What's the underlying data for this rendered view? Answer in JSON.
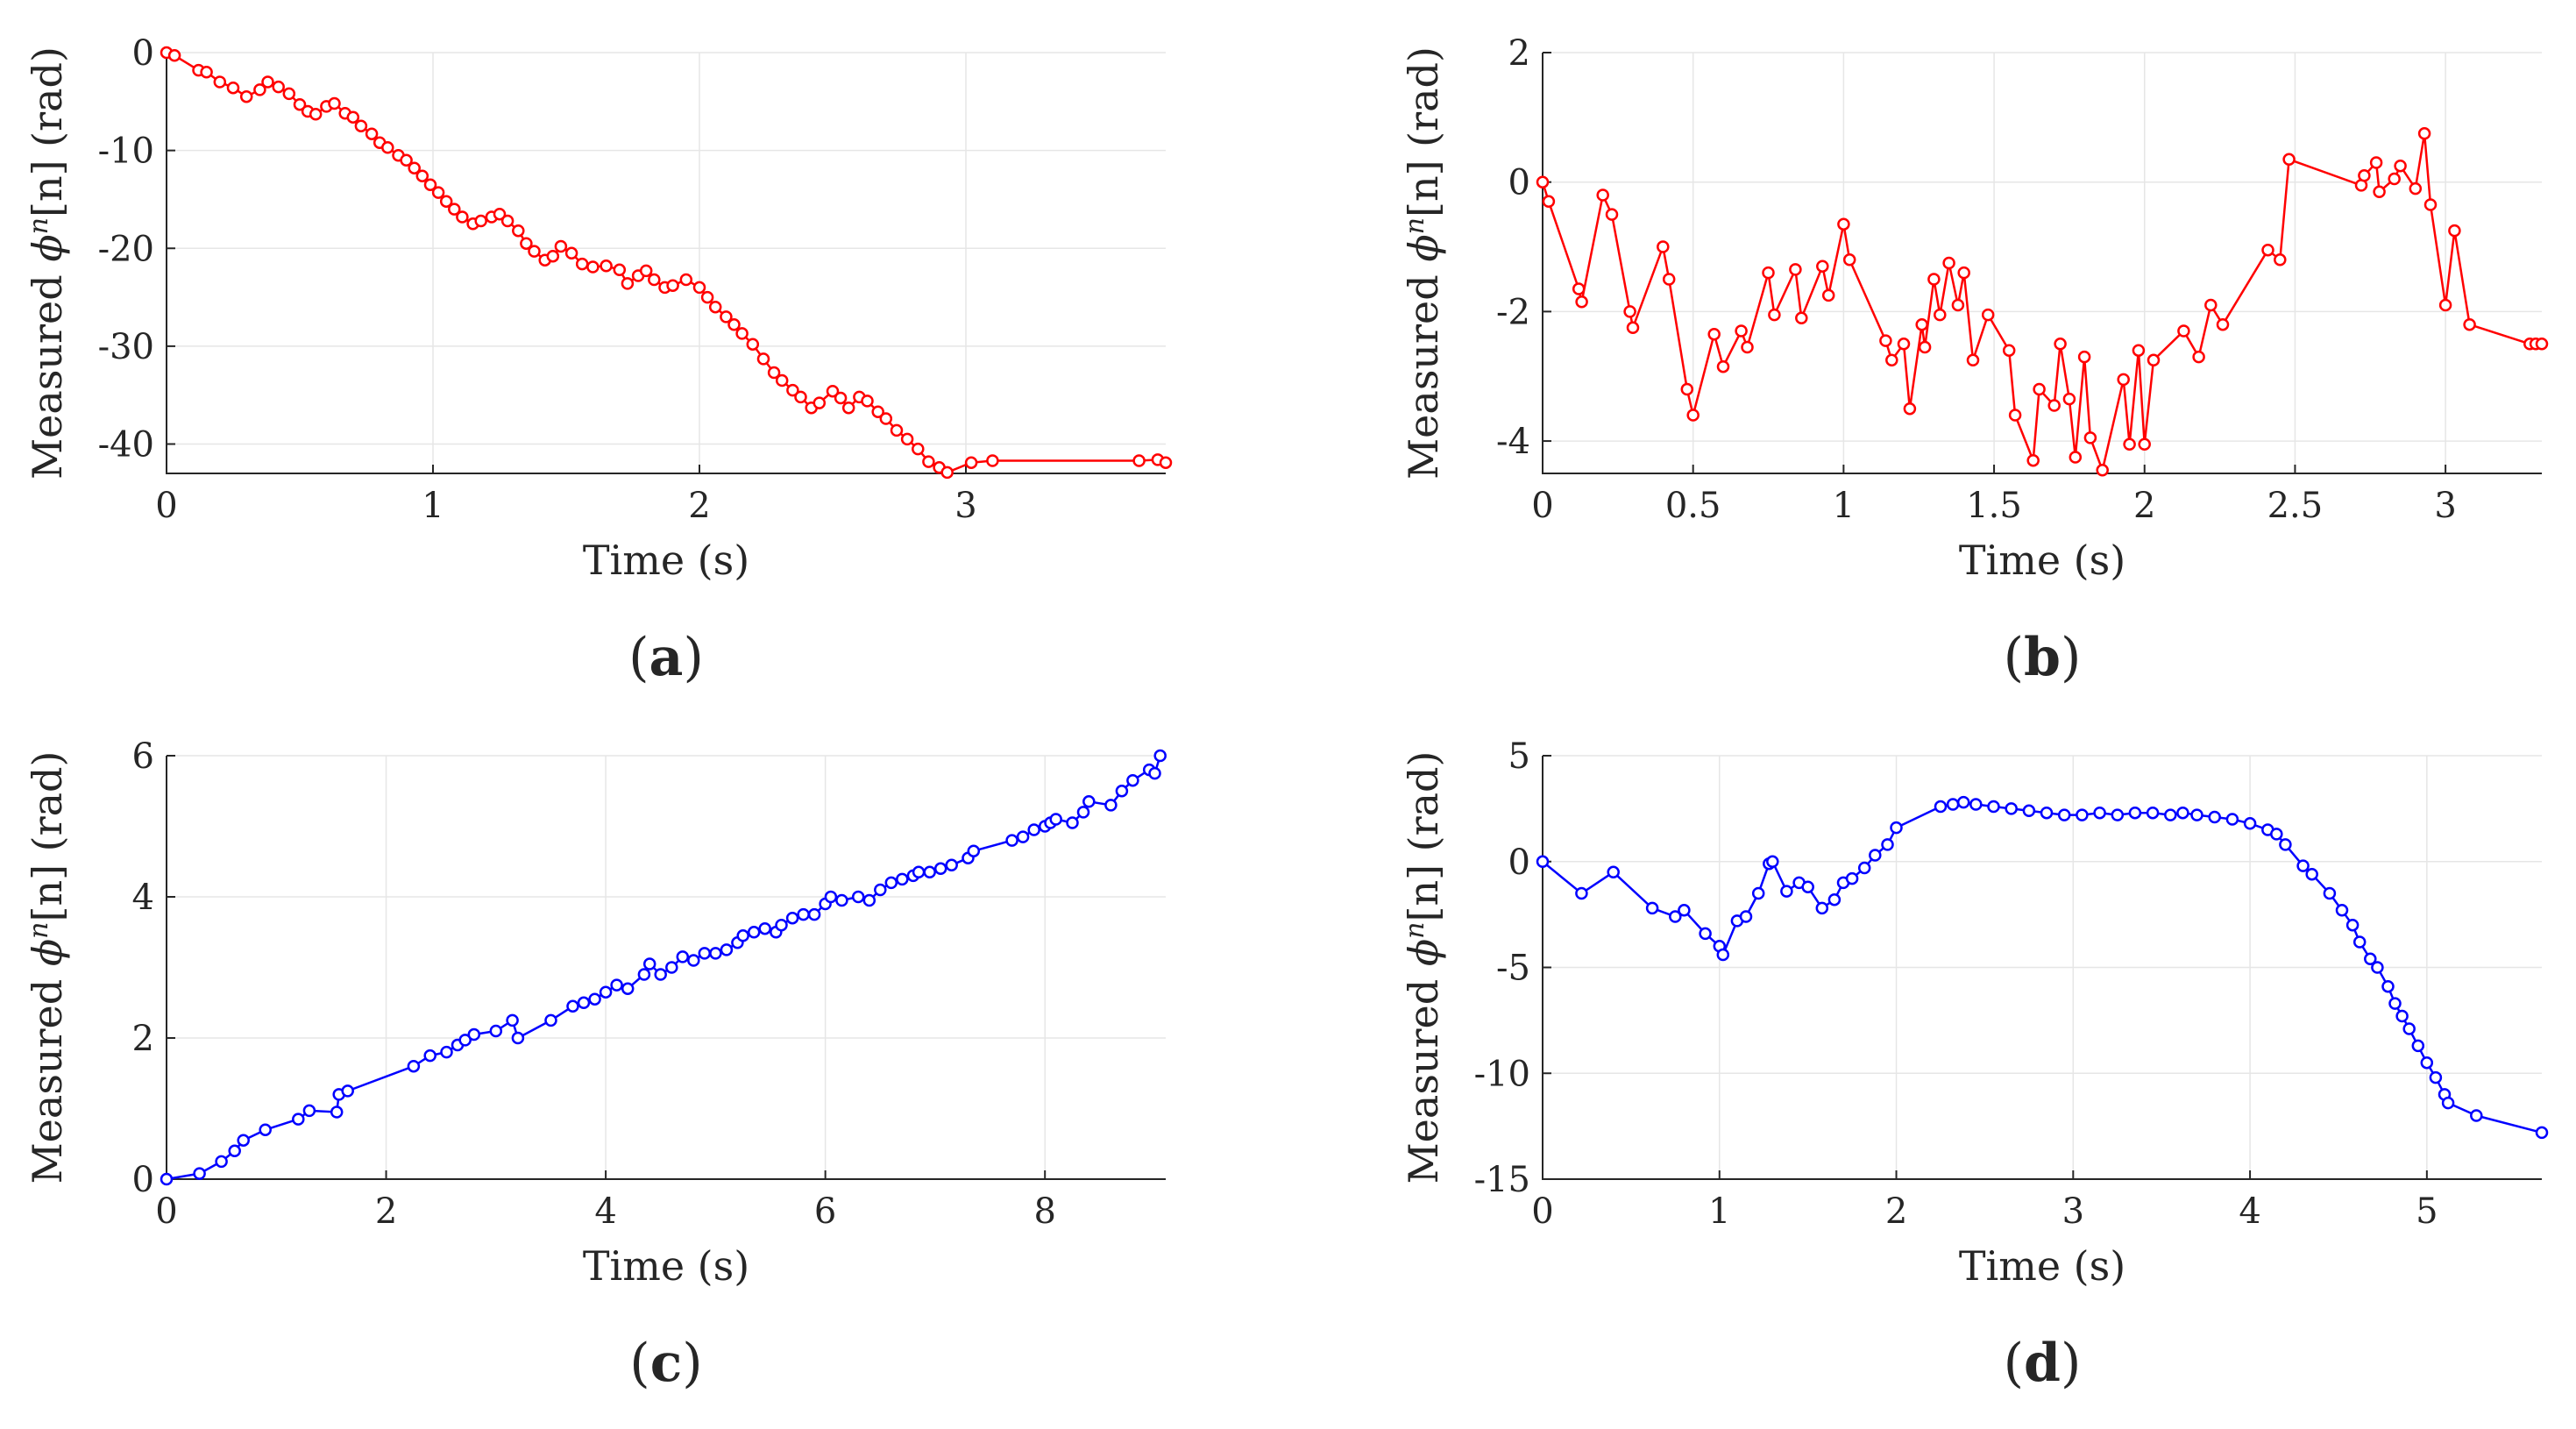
{
  "figure_labels": {
    "open": "(",
    "close": ")"
  },
  "chart_data": [
    {
      "type": "line",
      "panel_label": "a",
      "xlabel": "Time (s)",
      "ylabel_prefix": "Measured ",
      "ylabel_symbol": "ϕ",
      "ylabel_sup": "n",
      "ylabel_bracket": "[n]",
      "ylabel_unit": " (rad)",
      "xlim": [
        0,
        3.75
      ],
      "ylim": [
        -43,
        0
      ],
      "xticks": [
        0,
        1,
        2,
        3
      ],
      "xticklabels": [
        "0",
        "1",
        "2",
        "3"
      ],
      "yticks": [
        0,
        -10,
        -20,
        -30,
        -40
      ],
      "yticklabels": [
        "0",
        "-10",
        "-20",
        "-30",
        "-40"
      ],
      "color": "#ff0000",
      "grid": true,
      "marker": "circle",
      "x": [
        0,
        0.03,
        0.12,
        0.15,
        0.2,
        0.25,
        0.3,
        0.35,
        0.38,
        0.42,
        0.46,
        0.5,
        0.53,
        0.56,
        0.6,
        0.63,
        0.67,
        0.7,
        0.73,
        0.77,
        0.8,
        0.83,
        0.87,
        0.9,
        0.93,
        0.96,
        0.99,
        1.02,
        1.05,
        1.08,
        1.11,
        1.15,
        1.18,
        1.22,
        1.25,
        1.28,
        1.32,
        1.35,
        1.38,
        1.42,
        1.45,
        1.48,
        1.52,
        1.56,
        1.6,
        1.65,
        1.7,
        1.73,
        1.77,
        1.8,
        1.83,
        1.87,
        1.9,
        1.95,
        2.0,
        2.03,
        2.06,
        2.1,
        2.13,
        2.16,
        2.2,
        2.24,
        2.28,
        2.31,
        2.35,
        2.38,
        2.42,
        2.45,
        2.5,
        2.53,
        2.56,
        2.6,
        2.63,
        2.67,
        2.7,
        2.74,
        2.78,
        2.82,
        2.86,
        2.9,
        2.93,
        3.02,
        3.1,
        3.65,
        3.72,
        3.75
      ],
      "y": [
        0,
        -0.3,
        -1.8,
        -2,
        -3,
        -3.6,
        -4.5,
        -3.8,
        -3,
        -3.5,
        -4.2,
        -5.3,
        -6,
        -6.3,
        -5.5,
        -5.2,
        -6.2,
        -6.6,
        -7.5,
        -8.3,
        -9.2,
        -9.7,
        -10.5,
        -11,
        -11.8,
        -12.6,
        -13.5,
        -14.3,
        -15.2,
        -16,
        -16.8,
        -17.5,
        -17.2,
        -16.8,
        -16.5,
        -17.2,
        -18.2,
        -19.5,
        -20.3,
        -21.2,
        -20.8,
        -19.8,
        -20.5,
        -21.6,
        -21.9,
        -21.8,
        -22.2,
        -23.6,
        -22.8,
        -22.3,
        -23.2,
        -24,
        -23.8,
        -23.2,
        -24,
        -25,
        -26,
        -27,
        -27.8,
        -28.7,
        -29.8,
        -31.3,
        -32.7,
        -33.5,
        -34.5,
        -35.2,
        -36.3,
        -35.8,
        -34.6,
        -35.3,
        -36.3,
        -35.2,
        -35.6,
        -36.7,
        -37.4,
        -38.6,
        -39.5,
        -40.5,
        -41.8,
        -42.4,
        -42.9,
        -41.9,
        -41.7,
        -41.7,
        -41.6,
        -41.9
      ]
    },
    {
      "type": "line",
      "panel_label": "b",
      "xlabel": "Time (s)",
      "ylabel_prefix": "Measured ",
      "ylabel_symbol": "ϕ",
      "ylabel_sup": "n",
      "ylabel_bracket": "[n]",
      "ylabel_unit": " (rad)",
      "xlim": [
        0,
        3.32
      ],
      "ylim": [
        -4.5,
        2
      ],
      "xticks": [
        0,
        0.5,
        1,
        1.5,
        2,
        2.5,
        3
      ],
      "xticklabels": [
        "0",
        "0.5",
        "1",
        "1.5",
        "2",
        "2.5",
        "3"
      ],
      "yticks": [
        2,
        0,
        -2,
        -4
      ],
      "yticklabels": [
        "2",
        "0",
        "-2",
        "-4"
      ],
      "color": "#ff0000",
      "grid": true,
      "marker": "circle",
      "x": [
        0,
        0.02,
        0.12,
        0.13,
        0.2,
        0.23,
        0.29,
        0.3,
        0.4,
        0.42,
        0.48,
        0.5,
        0.57,
        0.6,
        0.66,
        0.68,
        0.75,
        0.77,
        0.84,
        0.86,
        0.93,
        0.95,
        1.0,
        1.02,
        1.14,
        1.16,
        1.2,
        1.22,
        1.26,
        1.27,
        1.3,
        1.32,
        1.35,
        1.38,
        1.4,
        1.43,
        1.48,
        1.55,
        1.57,
        1.63,
        1.65,
        1.7,
        1.72,
        1.75,
        1.77,
        1.8,
        1.82,
        1.86,
        1.93,
        1.95,
        1.98,
        2.0,
        2.03,
        2.13,
        2.18,
        2.22,
        2.26,
        2.41,
        2.45,
        2.48,
        2.72,
        2.73,
        2.77,
        2.78,
        2.83,
        2.85,
        2.9,
        2.93,
        2.95,
        3.0,
        3.03,
        3.08,
        3.28,
        3.3,
        3.32
      ],
      "y": [
        0,
        -0.3,
        -1.65,
        -1.85,
        -0.2,
        -0.5,
        -2,
        -2.25,
        -1,
        -1.5,
        -3.2,
        -3.6,
        -2.35,
        -2.85,
        -2.3,
        -2.55,
        -1.4,
        -2.05,
        -1.35,
        -2.1,
        -1.3,
        -1.75,
        -0.65,
        -1.2,
        -2.45,
        -2.75,
        -2.5,
        -3.5,
        -2.2,
        -2.55,
        -1.5,
        -2.05,
        -1.25,
        -1.9,
        -1.4,
        -2.75,
        -2.05,
        -2.6,
        -3.6,
        -4.3,
        -3.2,
        -3.45,
        -2.5,
        -3.35,
        -4.25,
        -2.7,
        -3.95,
        -4.45,
        -3.05,
        -4.05,
        -2.6,
        -4.05,
        -2.75,
        -2.3,
        -2.7,
        -1.9,
        -2.2,
        -1.05,
        -1.2,
        0.35,
        -0.05,
        0.1,
        0.3,
        -0.15,
        0.05,
        0.25,
        -0.1,
        0.75,
        -0.35,
        -1.9,
        -0.75,
        -2.2,
        -2.5,
        -2.5,
        -2.5
      ]
    },
    {
      "type": "line",
      "panel_label": "c",
      "xlabel": "Time (s)",
      "ylabel_prefix": "Measured ",
      "ylabel_symbol": "ϕ",
      "ylabel_sup": "n",
      "ylabel_bracket": "[n]",
      "ylabel_unit": " (rad)",
      "xlim": [
        0,
        9.1
      ],
      "ylim": [
        0,
        6
      ],
      "xticks": [
        0,
        2,
        4,
        6,
        8
      ],
      "xticklabels": [
        "0",
        "2",
        "4",
        "6",
        "8"
      ],
      "yticks": [
        0,
        2,
        4,
        6
      ],
      "yticklabels": [
        "0",
        "2",
        "4",
        "6"
      ],
      "color": "#0000ff",
      "grid": true,
      "marker": "circle",
      "x": [
        0,
        0.3,
        0.5,
        0.62,
        0.7,
        0.9,
        1.2,
        1.3,
        1.55,
        1.57,
        1.65,
        2.25,
        2.4,
        2.55,
        2.65,
        2.72,
        2.8,
        3.0,
        3.15,
        3.2,
        3.5,
        3.7,
        3.8,
        3.9,
        4.0,
        4.1,
        4.2,
        4.35,
        4.4,
        4.5,
        4.6,
        4.7,
        4.8,
        4.9,
        5.0,
        5.1,
        5.2,
        5.25,
        5.35,
        5.45,
        5.55,
        5.6,
        5.7,
        5.8,
        5.9,
        6.0,
        6.05,
        6.15,
        6.3,
        6.4,
        6.5,
        6.6,
        6.7,
        6.8,
        6.85,
        6.95,
        7.05,
        7.15,
        7.3,
        7.35,
        7.7,
        7.8,
        7.9,
        8.0,
        8.05,
        8.1,
        8.25,
        8.35,
        8.4,
        8.6,
        8.7,
        8.8,
        8.95,
        9.0,
        9.05
      ],
      "y": [
        0,
        0.08,
        0.25,
        0.4,
        0.55,
        0.7,
        0.85,
        0.97,
        0.95,
        1.2,
        1.25,
        1.6,
        1.75,
        1.8,
        1.9,
        1.97,
        2.05,
        2.1,
        2.25,
        2.0,
        2.25,
        2.45,
        2.5,
        2.55,
        2.65,
        2.75,
        2.7,
        2.9,
        3.05,
        2.9,
        3.0,
        3.15,
        3.1,
        3.2,
        3.2,
        3.25,
        3.35,
        3.45,
        3.5,
        3.55,
        3.5,
        3.6,
        3.7,
        3.75,
        3.75,
        3.9,
        4.0,
        3.95,
        4.0,
        3.95,
        4.1,
        4.2,
        4.25,
        4.3,
        4.35,
        4.35,
        4.4,
        4.45,
        4.55,
        4.65,
        4.8,
        4.85,
        4.95,
        5.0,
        5.05,
        5.1,
        5.05,
        5.2,
        5.35,
        5.3,
        5.5,
        5.65,
        5.8,
        5.75,
        6.0
      ]
    },
    {
      "type": "line",
      "panel_label": "d",
      "xlabel": "Time (s)",
      "ylabel_prefix": "Measured ",
      "ylabel_symbol": "ϕ",
      "ylabel_sup": "n",
      "ylabel_bracket": "[n]",
      "ylabel_unit": " (rad)",
      "xlim": [
        0,
        5.65
      ],
      "ylim": [
        -15,
        5
      ],
      "xticks": [
        0,
        1,
        2,
        3,
        4,
        5
      ],
      "xticklabels": [
        "0",
        "1",
        "2",
        "3",
        "4",
        "5"
      ],
      "yticks": [
        5,
        0,
        -5,
        -10,
        -15
      ],
      "yticklabels": [
        "5",
        "0",
        "-5",
        "-10",
        "-15"
      ],
      "color": "#0000ff",
      "grid": true,
      "marker": "circle",
      "x": [
        0,
        0.22,
        0.4,
        0.62,
        0.75,
        0.8,
        0.92,
        1.0,
        1.02,
        1.1,
        1.15,
        1.22,
        1.28,
        1.3,
        1.38,
        1.45,
        1.5,
        1.58,
        1.65,
        1.7,
        1.75,
        1.82,
        1.88,
        1.95,
        2.0,
        2.25,
        2.32,
        2.38,
        2.45,
        2.55,
        2.65,
        2.75,
        2.85,
        2.95,
        3.05,
        3.15,
        3.25,
        3.35,
        3.45,
        3.55,
        3.62,
        3.7,
        3.8,
        3.9,
        4.0,
        4.1,
        4.15,
        4.2,
        4.3,
        4.35,
        4.45,
        4.52,
        4.58,
        4.62,
        4.68,
        4.72,
        4.78,
        4.82,
        4.86,
        4.9,
        4.95,
        5.0,
        5.05,
        5.1,
        5.12,
        5.28,
        5.65
      ],
      "y": [
        0,
        -1.5,
        -0.5,
        -2.2,
        -2.6,
        -2.3,
        -3.4,
        -4.0,
        -4.4,
        -2.8,
        -2.6,
        -1.5,
        -0.1,
        0,
        -1.4,
        -1.0,
        -1.2,
        -2.2,
        -1.8,
        -1.0,
        -0.8,
        -0.3,
        0.3,
        0.8,
        1.6,
        2.6,
        2.7,
        2.8,
        2.7,
        2.6,
        2.5,
        2.4,
        2.3,
        2.2,
        2.2,
        2.3,
        2.2,
        2.3,
        2.3,
        2.2,
        2.3,
        2.2,
        2.1,
        2.0,
        1.8,
        1.5,
        1.3,
        0.8,
        -0.2,
        -0.6,
        -1.5,
        -2.3,
        -3.0,
        -3.8,
        -4.6,
        -5.0,
        -5.9,
        -6.7,
        -7.3,
        -7.9,
        -8.7,
        -9.5,
        -10.2,
        -11.0,
        -11.4,
        -12.0,
        -12.8
      ]
    }
  ]
}
